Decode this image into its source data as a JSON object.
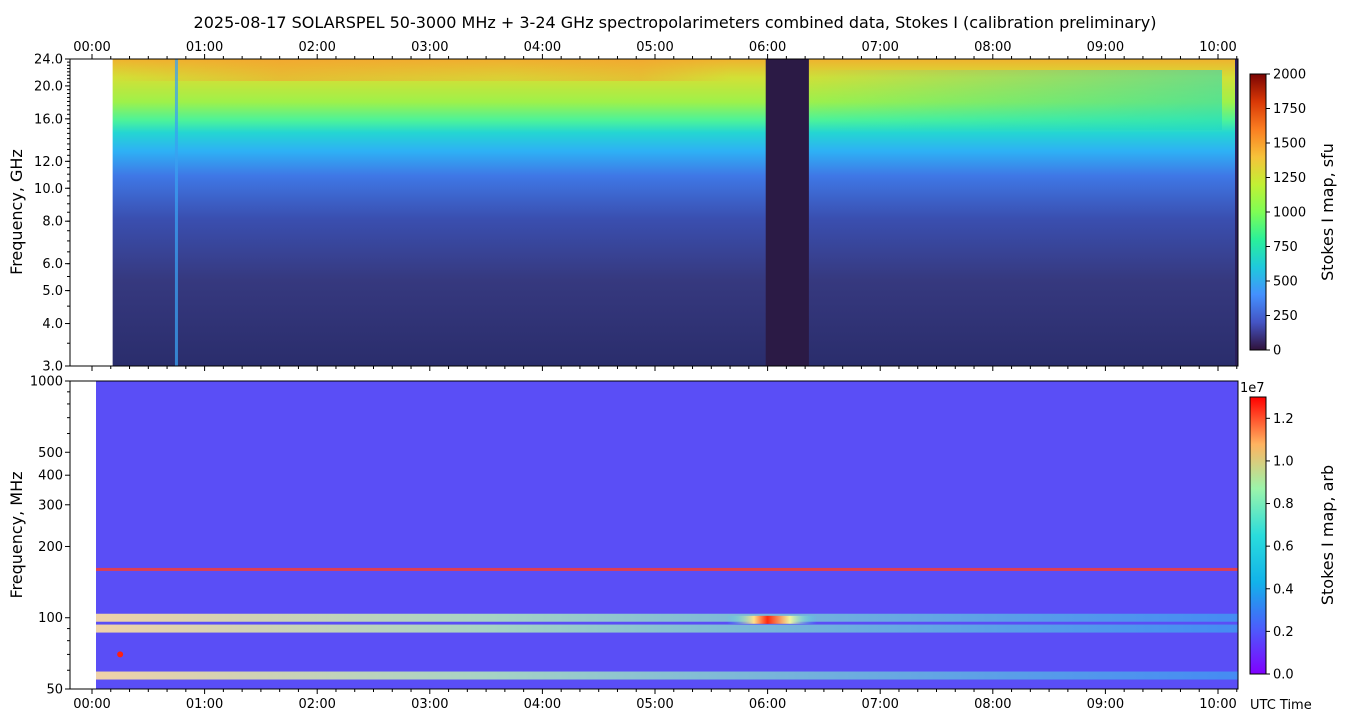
{
  "title": "2025-08-17  SOLARSPEL  50-3000 MHz  +  3-24 GHz  spectropolarimeters combined data,  Stokes I  (calibration preliminary)",
  "x_axis": {
    "unit_label": "UTC Time",
    "ticks": [
      "00:00",
      "01:00",
      "02:00",
      "03:00",
      "04:00",
      "05:00",
      "06:00",
      "07:00",
      "08:00",
      "09:00",
      "10:00"
    ]
  },
  "colors": {
    "turbo_low": "#30123b",
    "turbo_mid": "#1ae4b6",
    "turbo_high": "#7a0403",
    "rainbow_low": "#8000ff",
    "rainbow_high": "#ff0000"
  },
  "chart_data": [
    {
      "type": "heatmap",
      "panel": "top",
      "ylabel": "Frequency, GHz",
      "y_ticks": [
        "3.0",
        "4.0",
        "5.0",
        "6.0",
        "8.0",
        "10.0",
        "12.0",
        "16.0",
        "20.0",
        "24.0"
      ],
      "y_tick_values": [
        3,
        4,
        5,
        6,
        8,
        10,
        12,
        16,
        20,
        24
      ],
      "ylim": [
        3,
        24
      ],
      "y_scale": "log",
      "xlim": [
        "00:00",
        "10:10"
      ],
      "data_start": "00:11",
      "colormap": "turbo",
      "colorbar": {
        "label": "Stokes I map, sfu",
        "ticks": [
          "0",
          "250",
          "500",
          "750",
          "1000",
          "1250",
          "1500",
          "1750",
          "2000"
        ],
        "range": [
          0,
          2000
        ]
      },
      "features": [
        {
          "type": "data_gap",
          "start": "05:59",
          "end": "06:22"
        },
        {
          "type": "narrow_stripe",
          "time": "00:45"
        },
        {
          "type": "edge_dropout",
          "time": "10:08"
        }
      ]
    },
    {
      "type": "heatmap",
      "panel": "bottom",
      "ylabel": "Frequency, MHz",
      "y_ticks": [
        "50",
        "100",
        "200",
        "300",
        "400",
        "500",
        "1000"
      ],
      "y_tick_values": [
        50,
        100,
        200,
        300,
        400,
        500,
        1000
      ],
      "ylim": [
        50,
        1000
      ],
      "y_scale": "log",
      "xlim": [
        "00:00",
        "10:10"
      ],
      "colormap": "rainbow",
      "colorbar": {
        "label": "Stokes I map, arb",
        "ticks": [
          "0.0",
          "0.2",
          "0.4",
          "0.6",
          "0.8",
          "1.0",
          "1.2"
        ],
        "range": [
          0,
          1.3
        ],
        "exponent": "1e7"
      },
      "features": [
        {
          "type": "interference_band",
          "freq": 160
        },
        {
          "type": "bright_band",
          "freq": 90
        },
        {
          "type": "bright_band",
          "freq": 57
        },
        {
          "type": "bright_band",
          "freq": 100
        },
        {
          "type": "flare_spot",
          "time": "05:57",
          "freq": 98
        },
        {
          "type": "burst",
          "time": "00:15",
          "freq": 70
        }
      ]
    }
  ]
}
